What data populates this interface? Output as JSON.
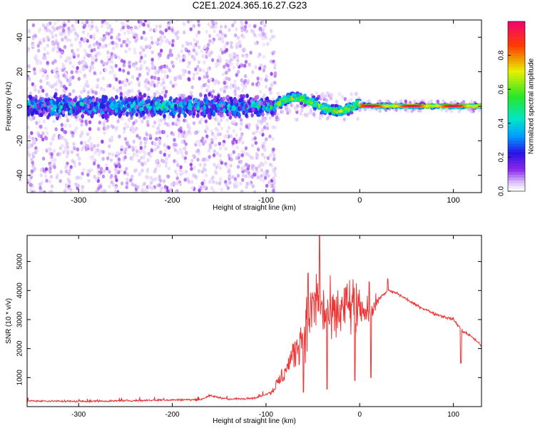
{
  "title": "C2E1.2024.365.16.27.G23",
  "colors": {
    "signal": "#ee3333",
    "scatter_sparse": "#c9a6f2",
    "scatter_dense": "#7a10e6",
    "scatter_core": "#2a1bdd",
    "frame": "#000000"
  },
  "chart_data": [
    {
      "type": "heatmap",
      "xlabel": "Height of straight line (km)",
      "ylabel": "Frequency (Hz)",
      "xlim": [
        -355,
        130
      ],
      "ylim": [
        -50,
        50
      ],
      "xticks": [
        -300,
        -200,
        -100,
        0,
        100
      ],
      "yticks": [
        -40,
        -20,
        0,
        20,
        40
      ],
      "colorbar": {
        "label": "Normalized spectral amplitude",
        "range": [
          0,
          1
        ],
        "ticks": [
          "0.0",
          "0.2",
          "0.4",
          "0.6",
          "0.8"
        ],
        "tick_values": [
          0.0,
          0.2,
          0.4,
          0.6,
          0.8
        ]
      },
      "regions": [
        {
          "x_range": [
            -355,
            -115
          ],
          "y_spread": 50,
          "center_spread": 6,
          "max_amplitude": 0.45
        },
        {
          "x_range": [
            -115,
            -90
          ],
          "y_spread": 50,
          "center_spread": 5,
          "max_amplitude": 0.5
        },
        {
          "x_range": [
            -90,
            0
          ],
          "y_spread": 8,
          "center_spread": 3,
          "max_amplitude": 0.8
        },
        {
          "x_range": [
            0,
            130
          ],
          "y_spread": 3,
          "center_spread": 1,
          "max_amplitude": 0.95
        }
      ]
    },
    {
      "type": "line",
      "xlabel": "Height of straight line (km)",
      "ylabel": "SNR (10 * v/v)",
      "xlim": [
        -355,
        130
      ],
      "ylim": [
        0,
        5900
      ],
      "xticks": [
        -300,
        -200,
        -100,
        0,
        100
      ],
      "yticks": [
        1000,
        2000,
        3000,
        4000,
        5000
      ],
      "series": [
        {
          "points": [
            [
              -355,
              200
            ],
            [
              -300,
              180
            ],
            [
              -250,
              200
            ],
            [
              -200,
              230
            ],
            [
              -170,
              240
            ],
            [
              -160,
              380
            ],
            [
              -140,
              250
            ],
            [
              -110,
              300
            ],
            [
              -95,
              500
            ],
            [
              -85,
              900
            ],
            [
              -75,
              1500
            ],
            [
              -65,
              2200
            ],
            [
              -55,
              3000
            ],
            [
              -45,
              3800
            ],
            [
              -40,
              3300
            ],
            [
              -30,
              3000
            ],
            [
              -20,
              3300
            ],
            [
              -10,
              3500
            ],
            [
              0,
              3200
            ],
            [
              10,
              3300
            ],
            [
              20,
              3700
            ],
            [
              30,
              4000
            ],
            [
              40,
              3900
            ],
            [
              60,
              3500
            ],
            [
              80,
              3200
            ],
            [
              100,
              3000
            ],
            [
              110,
              2600
            ],
            [
              120,
              2400
            ],
            [
              130,
              2100
            ]
          ],
          "peaks": [
            [
              -43,
              5900
            ],
            [
              -55,
              4600
            ],
            [
              -15,
              4100
            ],
            [
              10,
              4300
            ],
            [
              30,
              4400
            ]
          ],
          "dips": [
            [
              -60,
              500
            ],
            [
              -35,
              600
            ],
            [
              -5,
              900
            ],
            [
              12,
              1000
            ],
            [
              108,
              1500
            ]
          ]
        }
      ]
    }
  ]
}
